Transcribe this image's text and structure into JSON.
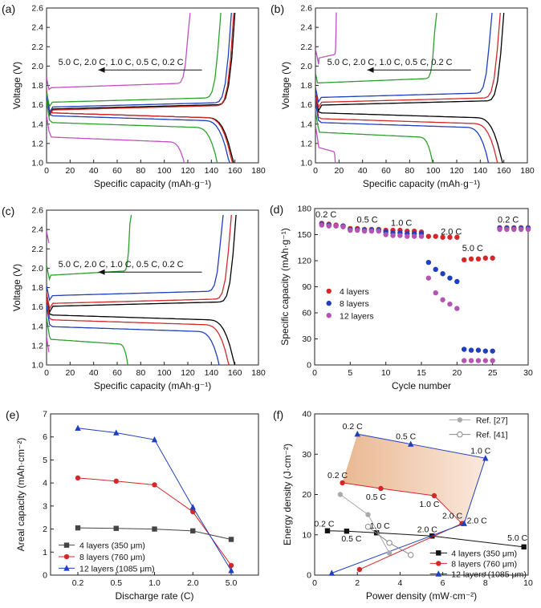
{
  "chart_data": [
    {
      "id": "a",
      "type": "line",
      "panel_label": "(a)",
      "xlabel": "Specific capacity (mAh·g⁻¹)",
      "ylabel": "Voltage (V)",
      "xlim": [
        0,
        180
      ],
      "ylim": [
        1.0,
        2.6
      ],
      "xticks": [
        0,
        20,
        40,
        60,
        80,
        100,
        120,
        140,
        160,
        180
      ],
      "yticks": [
        1.0,
        1.2,
        1.4,
        1.6,
        1.8,
        2.0,
        2.2,
        2.4,
        2.6
      ],
      "annotation": "5.0 C, 2.0 C, 1.0 C, 0.5 C, 0.2 C",
      "series": [
        {
          "rate": "0.2 C",
          "color": "#000000",
          "charge_plateau": 1.58,
          "discharge_plateau": 1.5,
          "capacity": 160
        },
        {
          "rate": "0.5 C",
          "color": "#d62728",
          "charge_plateau": 1.57,
          "discharge_plateau": 1.5,
          "capacity": 159
        },
        {
          "rate": "1.0 C",
          "color": "#1f3fbf",
          "charge_plateau": 1.6,
          "discharge_plateau": 1.47,
          "capacity": 157
        },
        {
          "rate": "2.0 C",
          "color": "#2ca02c",
          "charge_plateau": 1.65,
          "discharge_plateau": 1.4,
          "capacity": 148
        },
        {
          "rate": "5.0 C",
          "color": "#c44fc4",
          "charge_plateau": 1.8,
          "discharge_plateau": 1.25,
          "capacity": 122
        }
      ]
    },
    {
      "id": "b",
      "type": "line",
      "panel_label": "(b)",
      "xlabel": "Specific capacity (mAh·g⁻¹)",
      "ylabel": "Voltage (V)",
      "xlim": [
        0,
        180
      ],
      "ylim": [
        1.0,
        2.6
      ],
      "xticks": [
        0,
        20,
        40,
        60,
        80,
        100,
        120,
        140,
        160,
        180
      ],
      "yticks": [
        1.0,
        1.2,
        1.4,
        1.6,
        1.8,
        2.0,
        2.2,
        2.4,
        2.6
      ],
      "annotation": "5.0 C, 2.0 C, 1.0 C, 0.5 C, 0.2 C",
      "series": [
        {
          "rate": "0.2 C",
          "color": "#000000",
          "charge_plateau": 1.62,
          "discharge_plateau": 1.5,
          "capacity": 160
        },
        {
          "rate": "0.5 C",
          "color": "#d62728",
          "charge_plateau": 1.65,
          "discharge_plateau": 1.44,
          "capacity": 157
        },
        {
          "rate": "1.0 C",
          "color": "#1f3fbf",
          "charge_plateau": 1.7,
          "discharge_plateau": 1.4,
          "capacity": 150
        },
        {
          "rate": "2.0 C",
          "color": "#2ca02c",
          "charge_plateau": 1.85,
          "discharge_plateau": 1.3,
          "capacity": 103
        },
        {
          "rate": "5.0 C",
          "color": "#c44fc4",
          "charge_plateau": 2.1,
          "discharge_plateau": 1.15,
          "capacity": 18
        }
      ]
    },
    {
      "id": "c",
      "type": "line",
      "panel_label": "(c)",
      "xlabel": "Specific capacity (mAh·g⁻¹)",
      "ylabel": "Voltage (V)",
      "xlim": [
        0,
        180
      ],
      "ylim": [
        1.0,
        2.6
      ],
      "xticks": [
        0,
        20,
        40,
        60,
        80,
        100,
        120,
        140,
        160,
        180
      ],
      "yticks": [
        1.0,
        1.2,
        1.4,
        1.6,
        1.8,
        2.0,
        2.2,
        2.4,
        2.6
      ],
      "annotation": "5.0 C, 2.0 C, 1.0 C, 0.5 C, 0.2 C",
      "series": [
        {
          "rate": "0.2 C",
          "color": "#000000",
          "charge_plateau": 1.63,
          "discharge_plateau": 1.5,
          "capacity": 161
        },
        {
          "rate": "0.5 C",
          "color": "#d62728",
          "charge_plateau": 1.66,
          "discharge_plateau": 1.45,
          "capacity": 157
        },
        {
          "rate": "1.0 C",
          "color": "#1f3fbf",
          "charge_plateau": 1.74,
          "discharge_plateau": 1.38,
          "capacity": 150
        },
        {
          "rate": "2.0 C",
          "color": "#2ca02c",
          "charge_plateau": 1.95,
          "discharge_plateau": 1.25,
          "capacity": 72
        },
        {
          "rate": "5.0 C",
          "color": "#c44fc4",
          "charge_plateau": 2.3,
          "discharge_plateau": 1.05,
          "capacity": 2
        }
      ]
    },
    {
      "id": "d",
      "type": "scatter",
      "panel_label": "(d)",
      "xlabel": "Cycle number",
      "ylabel": "Specific capacity (mAh·g⁻¹)",
      "xlim": [
        0,
        30
      ],
      "ylim": [
        0,
        180
      ],
      "xticks": [
        0,
        5,
        10,
        15,
        20,
        25,
        30
      ],
      "yticks": [
        0,
        30,
        60,
        90,
        120,
        150,
        180
      ],
      "rate_labels": [
        "0.2 C",
        "0.5 C",
        "1.0 C",
        "2.0 C",
        "5.0 C",
        "0.2 C"
      ],
      "legend": "left",
      "series": [
        {
          "name": "4 layers",
          "color": "#d62728",
          "y": [
            163,
            162,
            161,
            160,
            157,
            157,
            156,
            156,
            156,
            155,
            155,
            155,
            154,
            154,
            153,
            148,
            148,
            147,
            147,
            147,
            121,
            122,
            122,
            123,
            123,
            158,
            158,
            158,
            158,
            158
          ]
        },
        {
          "name": "8 layers",
          "color": "#1f3fbf",
          "y": [
            162,
            161,
            160,
            160,
            156,
            156,
            155,
            155,
            155,
            153,
            152,
            152,
            151,
            151,
            151,
            118,
            110,
            105,
            100,
            96,
            18,
            17,
            17,
            16,
            16,
            157,
            157,
            157,
            157,
            157
          ]
        },
        {
          "name": "12 layers",
          "color": "#b455b4",
          "y": [
            161,
            160,
            160,
            159,
            155,
            155,
            154,
            154,
            154,
            150,
            149,
            149,
            148,
            148,
            148,
            100,
            83,
            75,
            70,
            65,
            5,
            5,
            5,
            5,
            5,
            156,
            156,
            156,
            156,
            156
          ]
        }
      ]
    },
    {
      "id": "e",
      "type": "line",
      "panel_label": "(e)",
      "xlabel": "Discharge rate (C)",
      "ylabel": "Areal capacity (mAh·cm⁻²)",
      "categories": [
        "0.2",
        "0.5",
        "1.0",
        "2.0",
        "5.0"
      ],
      "ylim": [
        0,
        7
      ],
      "yticks": [
        0,
        1,
        2,
        3,
        4,
        5,
        6,
        7
      ],
      "legend": "bottom-left",
      "series": [
        {
          "name": "4 layers (350 μm)",
          "color": "#444444",
          "marker": "square",
          "values": [
            2.05,
            2.03,
            2.0,
            1.92,
            1.55
          ]
        },
        {
          "name": "8 layers (760 μm)",
          "color": "#d62728",
          "marker": "circle",
          "values": [
            4.22,
            4.08,
            3.92,
            2.75,
            0.42
          ]
        },
        {
          "name": "12 layers (1085 μm)",
          "color": "#1f3fbf",
          "marker": "triangle",
          "values": [
            6.38,
            6.18,
            5.88,
            2.95,
            0.2
          ]
        }
      ]
    },
    {
      "id": "f",
      "type": "line",
      "panel_label": "(f)",
      "xlabel": "Power density (mW·cm⁻²)",
      "ylabel": "Energy density (J·cm⁻²)",
      "xlim": [
        0,
        10
      ],
      "ylim": [
        0,
        40
      ],
      "xticks": [
        0,
        2,
        4,
        6,
        8,
        10
      ],
      "yticks": [
        0,
        10,
        20,
        30,
        40
      ],
      "legend_top": [
        {
          "name": "Ref. [27]",
          "color": "#aaaaaa",
          "marker": "circle-filled"
        },
        {
          "name": "Ref. [41]",
          "color": "#888888",
          "marker": "circle-open"
        }
      ],
      "legend_bottom": [
        {
          "name": "4 layers (350 μm)",
          "color": "#111111",
          "marker": "square"
        },
        {
          "name": "8 layers (760 μm)",
          "color": "#d62728",
          "marker": "circle"
        },
        {
          "name": "12 layers (1085 μm)",
          "color": "#1f3fbf",
          "marker": "triangle"
        }
      ],
      "shaded_region_color": "#f1c8a8",
      "series": [
        {
          "name": "4 layers (350 μm)",
          "color": "#111111",
          "marker": "square",
          "points": [
            [
              0.6,
              11.0
            ],
            [
              1.5,
              10.9
            ],
            [
              2.9,
              10.5
            ],
            [
              5.5,
              9.7
            ],
            [
              9.8,
              7.0
            ]
          ],
          "labels": [
            "0.2 C",
            "0.5 C",
            "1.0 C",
            "2.0 C",
            "5.0 C"
          ]
        },
        {
          "name": "8 layers (760 μm)",
          "color": "#d62728",
          "marker": "circle",
          "points": [
            [
              1.3,
              22.9
            ],
            [
              3.1,
              21.5
            ],
            [
              5.6,
              19.7
            ],
            [
              6.9,
              12.8
            ],
            [
              2.1,
              1.4
            ]
          ],
          "labels": [
            "0.2 C",
            "0.5 C",
            "1.0 C",
            "2.0 C",
            ""
          ]
        },
        {
          "name": "12 layers (1085 μm)",
          "color": "#1f3fbf",
          "marker": "triangle",
          "points": [
            [
              2.0,
              35.0
            ],
            [
              4.5,
              32.5
            ],
            [
              8.0,
              29.0
            ],
            [
              7.0,
              12.8
            ],
            [
              0.8,
              0.5
            ]
          ],
          "labels": [
            "0.2 C",
            "0.5 C",
            "1.0 C",
            "2.0 C",
            ""
          ]
        },
        {
          "name": "Ref. [27]",
          "color": "#aaaaaa",
          "marker": "circle-filled",
          "points": [
            [
              1.2,
              20.0
            ],
            [
              2.5,
              15.0
            ],
            [
              3.5,
              5.5
            ]
          ]
        },
        {
          "name": "Ref. [41]",
          "color": "#888888",
          "marker": "circle-open",
          "points": [
            [
              2.5,
              12.0
            ],
            [
              3.5,
              8.0
            ],
            [
              4.5,
              5.0
            ]
          ]
        }
      ]
    }
  ]
}
